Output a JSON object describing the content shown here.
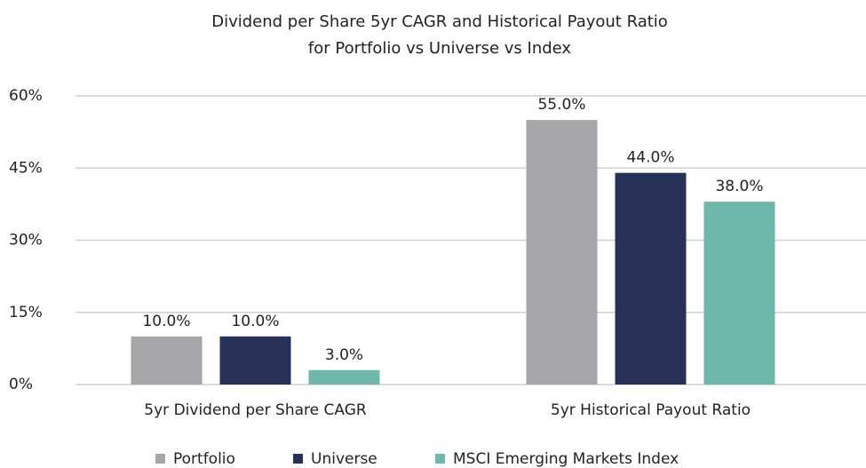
{
  "chart_data": {
    "type": "bar",
    "title": [
      "Dividend per Share 5yr CAGR and Historical Payout Ratio",
      "for Portfolio vs Universe vs Index"
    ],
    "categories": [
      "5yr Dividend per Share CAGR",
      "5yr Historical Payout Ratio"
    ],
    "series": [
      {
        "name": "Portfolio",
        "color": "#a6a6a8",
        "values": [
          10,
          55
        ],
        "value_labels": [
          "10.0%",
          "55.0%"
        ]
      },
      {
        "name": "Universe",
        "color": "#283258",
        "values": [
          10,
          44
        ],
        "value_labels": [
          "10.0%",
          "44.0%"
        ]
      },
      {
        "name": "MSCI Emerging Markets Index",
        "color": "#6fb7aa",
        "values": [
          3,
          38
        ],
        "value_labels": [
          "3.0%",
          "38.0%"
        ]
      }
    ],
    "ylim": [
      0,
      60
    ],
    "yticks": [
      {
        "value": 0,
        "label": "0%"
      },
      {
        "value": 15,
        "label": "15%"
      },
      {
        "value": 30,
        "label": "30%"
      },
      {
        "value": 45,
        "label": "45%"
      },
      {
        "value": 60,
        "label": "60%"
      }
    ],
    "grid": true,
    "legend": "bottom"
  }
}
